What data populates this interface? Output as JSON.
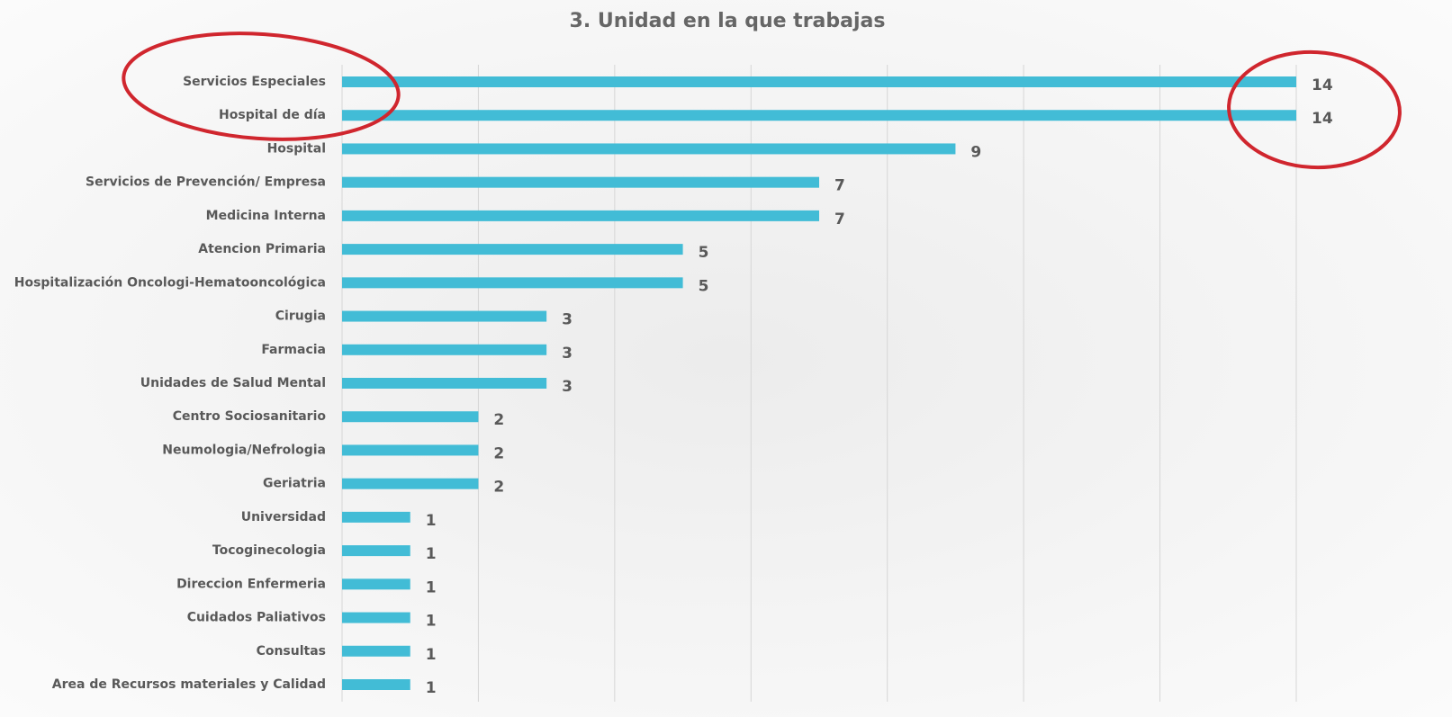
{
  "chart_data": {
    "type": "bar",
    "orientation": "horizontal",
    "title": "3. Unidad en la que trabajas",
    "categories": [
      "Servicios Especiales",
      "Hospital de día",
      "Hospital",
      "Servicios de Prevención/ Empresa",
      "Medicina Interna",
      "Atencion Primaria",
      "Hospitalización Oncologi-Hematooncológica",
      "Cirugia",
      "Farmacia",
      "Unidades de Salud Mental",
      "Centro Sociosanitario",
      "Neumologia/Nefrologia",
      "Geriatria",
      "Universidad",
      "Tocoginecologia",
      "Direccion Enfermeria",
      "Cuidados Paliativos",
      "Consultas",
      "Area de Recursos materiales y Calidad"
    ],
    "values": [
      14,
      14,
      9,
      7,
      7,
      5,
      5,
      3,
      3,
      3,
      2,
      2,
      2,
      1,
      1,
      1,
      1,
      1,
      1
    ],
    "color": "#42bcd6",
    "xlim": [
      0,
      14
    ],
    "xticks": [
      0,
      2,
      4,
      6,
      8,
      10,
      12,
      14
    ],
    "grid": true
  }
}
